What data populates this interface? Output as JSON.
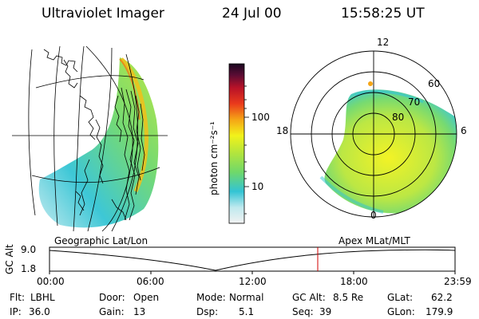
{
  "header": {
    "instrument": "Ultraviolet Imager",
    "date": "24 Jul 00",
    "time": "15:58:25 UT"
  },
  "colorbar": {
    "label": "photon cm⁻²s⁻¹",
    "tick_100": "100",
    "tick_10": "10",
    "stops": [
      "#e8e8e8",
      "#33c4d4",
      "#9be052",
      "#f2f21a",
      "#f08a14",
      "#e01a20",
      "#9a1228",
      "#2a0a3a"
    ]
  },
  "polar_plot": {
    "mlt_labels": {
      "noon": "12",
      "dusk": "18",
      "dawn": "6",
      "midnight": "0"
    },
    "lat_labels": {
      "lat60": "60",
      "lat70": "70",
      "lat80": "80"
    }
  },
  "map_labels": {
    "left": "Geographic Lat/Lon",
    "right": "Apex MLat/MLT"
  },
  "altitude_plot": {
    "ylabel": "GC Alt",
    "ymax": "9.0",
    "ymin": "1.8",
    "xticks": [
      "00:00",
      "06:00",
      "12:00",
      "18:00",
      "23:59"
    ]
  },
  "status": {
    "filter_label": "Flt:",
    "filter_value": "LBHL",
    "ip_label": "IP:",
    "ip_value": "36.0",
    "door_label": "Door:",
    "door_value": "Open",
    "gain_label": "Gain:",
    "gain_value": "13",
    "mode_label": "Mode:",
    "mode_value": "Normal",
    "dsp_label": "Dsp:",
    "dsp_value": "5.1",
    "gcalt_label": "GC Alt:",
    "gcalt_value": "8.5 Re",
    "seq_label": "Seq:",
    "seq_value": "39",
    "glat_label": "GLat:",
    "glat_value": "62.2",
    "glon_label": "GLon:",
    "glon_value": "179.9"
  }
}
